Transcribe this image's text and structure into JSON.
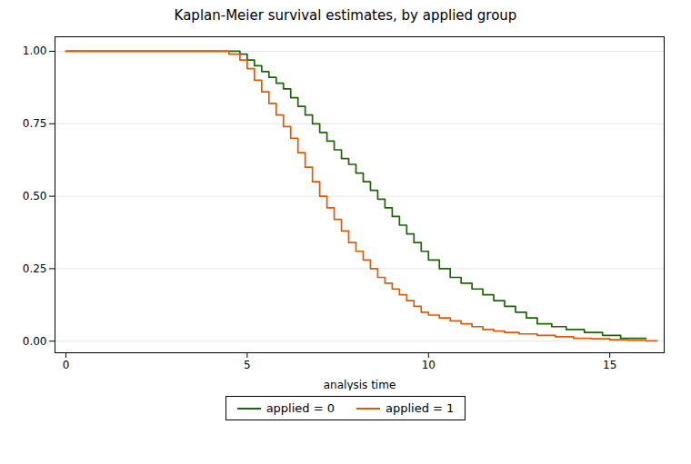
{
  "chart_data": {
    "type": "line",
    "title": "Kaplan-Meier survival estimates, by applied group",
    "xlabel": "analysis time",
    "xlim": [
      -0.3,
      16.5
    ],
    "ylim": [
      -0.04,
      1.05
    ],
    "xticks": [
      0,
      5,
      10,
      15
    ],
    "yticks": [
      {
        "value": 0,
        "label": "0.00"
      },
      0.25,
      {
        "value": 0.5,
        "label": "0.50"
      },
      0.75,
      {
        "value": 1,
        "label": "1.00"
      }
    ],
    "grid": "y",
    "legend": "bottom",
    "series": [
      {
        "name": "applied = 0",
        "color": "#1a6600",
        "x": [
          0,
          4.8,
          4.8,
          5.0,
          5.0,
          5.2,
          5.2,
          5.4,
          5.4,
          5.6,
          5.6,
          5.8,
          5.8,
          6.0,
          6.0,
          6.2,
          6.2,
          6.4,
          6.4,
          6.6,
          6.6,
          6.8,
          6.8,
          7.0,
          7.0,
          7.2,
          7.2,
          7.4,
          7.4,
          7.6,
          7.6,
          7.8,
          7.8,
          8.0,
          8.0,
          8.2,
          8.2,
          8.4,
          8.4,
          8.6,
          8.6,
          8.8,
          8.8,
          9.0,
          9.0,
          9.2,
          9.2,
          9.4,
          9.4,
          9.6,
          9.6,
          9.8,
          9.8,
          10.0,
          10.0,
          10.3,
          10.3,
          10.6,
          10.6,
          10.9,
          10.9,
          11.2,
          11.2,
          11.5,
          11.5,
          11.8,
          11.8,
          12.1,
          12.1,
          12.4,
          12.4,
          12.7,
          12.7,
          13.0,
          13.0,
          13.4,
          13.4,
          13.8,
          13.8,
          14.3,
          14.3,
          14.8,
          14.8,
          15.3,
          15.3,
          16.0
        ],
        "values": [
          1.0,
          1.0,
          0.99,
          0.99,
          0.97,
          0.97,
          0.95,
          0.95,
          0.93,
          0.93,
          0.91,
          0.91,
          0.89,
          0.89,
          0.87,
          0.87,
          0.84,
          0.84,
          0.81,
          0.81,
          0.78,
          0.78,
          0.75,
          0.75,
          0.72,
          0.72,
          0.69,
          0.69,
          0.66,
          0.66,
          0.63,
          0.63,
          0.61,
          0.61,
          0.58,
          0.58,
          0.55,
          0.55,
          0.52,
          0.52,
          0.49,
          0.49,
          0.46,
          0.46,
          0.43,
          0.43,
          0.4,
          0.4,
          0.37,
          0.37,
          0.34,
          0.34,
          0.31,
          0.31,
          0.28,
          0.28,
          0.25,
          0.25,
          0.22,
          0.22,
          0.2,
          0.2,
          0.18,
          0.18,
          0.16,
          0.16,
          0.14,
          0.14,
          0.12,
          0.12,
          0.1,
          0.1,
          0.08,
          0.08,
          0.06,
          0.06,
          0.05,
          0.05,
          0.04,
          0.04,
          0.03,
          0.03,
          0.02,
          0.02,
          0.01,
          0.01
        ]
      },
      {
        "name": "applied = 1",
        "color": "#e05800",
        "x": [
          0,
          4.5,
          4.5,
          4.8,
          4.8,
          5.0,
          5.0,
          5.2,
          5.2,
          5.4,
          5.4,
          5.6,
          5.6,
          5.8,
          5.8,
          6.0,
          6.0,
          6.2,
          6.2,
          6.4,
          6.4,
          6.6,
          6.6,
          6.8,
          6.8,
          7.0,
          7.0,
          7.2,
          7.2,
          7.4,
          7.4,
          7.6,
          7.6,
          7.8,
          7.8,
          8.0,
          8.0,
          8.2,
          8.2,
          8.4,
          8.4,
          8.6,
          8.6,
          8.8,
          8.8,
          9.0,
          9.0,
          9.2,
          9.2,
          9.4,
          9.4,
          9.6,
          9.6,
          9.8,
          9.8,
          10.0,
          10.0,
          10.3,
          10.3,
          10.6,
          10.6,
          10.9,
          10.9,
          11.2,
          11.2,
          11.5,
          11.5,
          11.8,
          11.8,
          12.1,
          12.1,
          12.5,
          12.5,
          13.0,
          13.0,
          13.5,
          13.5,
          14.0,
          14.0,
          14.5,
          14.5,
          15.0,
          15.0,
          15.5,
          15.5,
          16.0,
          16.0,
          16.3
        ],
        "values": [
          1.0,
          1.0,
          0.99,
          0.99,
          0.97,
          0.97,
          0.94,
          0.94,
          0.9,
          0.9,
          0.86,
          0.86,
          0.82,
          0.82,
          0.78,
          0.78,
          0.74,
          0.74,
          0.7,
          0.7,
          0.65,
          0.65,
          0.6,
          0.6,
          0.55,
          0.55,
          0.5,
          0.5,
          0.46,
          0.46,
          0.42,
          0.42,
          0.38,
          0.38,
          0.34,
          0.34,
          0.31,
          0.31,
          0.28,
          0.28,
          0.25,
          0.25,
          0.22,
          0.22,
          0.2,
          0.2,
          0.18,
          0.18,
          0.16,
          0.16,
          0.14,
          0.14,
          0.12,
          0.12,
          0.1,
          0.1,
          0.09,
          0.09,
          0.08,
          0.08,
          0.07,
          0.07,
          0.06,
          0.06,
          0.05,
          0.05,
          0.04,
          0.04,
          0.035,
          0.035,
          0.03,
          0.03,
          0.025,
          0.025,
          0.02,
          0.02,
          0.015,
          0.015,
          0.01,
          0.01,
          0.008,
          0.008,
          0.005,
          0.005,
          0.003,
          0.003,
          0.001,
          0.001
        ]
      }
    ]
  }
}
